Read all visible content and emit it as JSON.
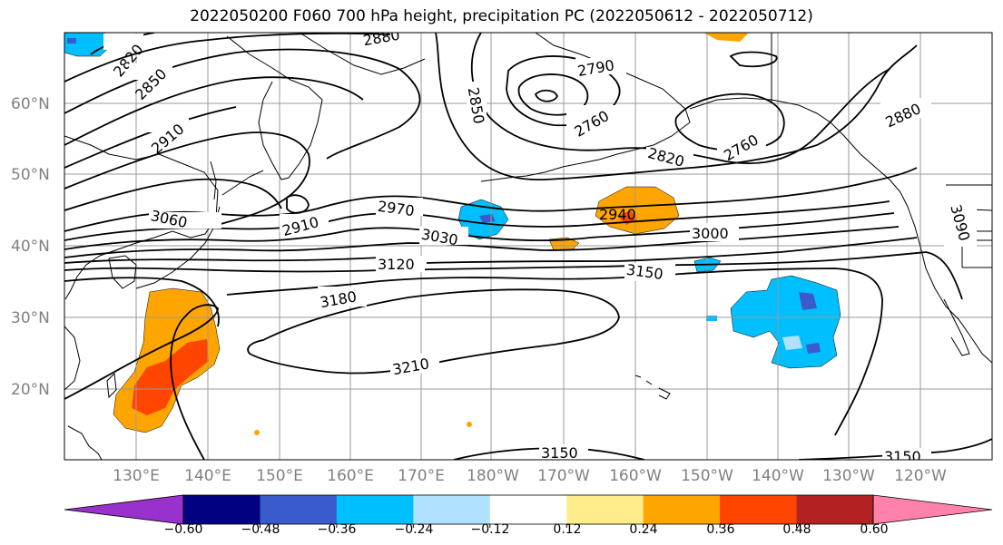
{
  "title": "2022050200 F060 700 hPa height, precipitation PC (2022050612 - 2022050712)",
  "lat_labels": [
    "60°N",
    "50°N",
    "40°N",
    "30°N",
    "20°N"
  ],
  "lon_labels": [
    "130°E",
    "140°E",
    "150°E",
    "160°E",
    "170°E",
    "180°W",
    "170°W",
    "160°W",
    "150°W",
    "140°W",
    "130°W",
    "120°W"
  ],
  "contour_labels": [
    "2820",
    "2850",
    "2880",
    "2910",
    "2790",
    "2850",
    "2760",
    "2820",
    "2760",
    "2880",
    "2970",
    "2940",
    "3060",
    "2910",
    "3030",
    "3000",
    "3090",
    "3120",
    "3150",
    "3180",
    "3210",
    "3150",
    "3150"
  ],
  "colorbar": {
    "tick_labels": [
      "−0.60",
      "−0.48",
      "−0.36",
      "−0.24",
      "−0.12",
      "0.12",
      "0.24",
      "0.36",
      "0.48",
      "0.60"
    ],
    "colors": [
      "#9932cc",
      "#000080",
      "#3a5bcc",
      "#00bfff",
      "#b0e2ff",
      "#ffffff",
      "#ffec8b",
      "#ffa500",
      "#ff4500",
      "#b22222",
      "#ff82ab"
    ]
  }
}
